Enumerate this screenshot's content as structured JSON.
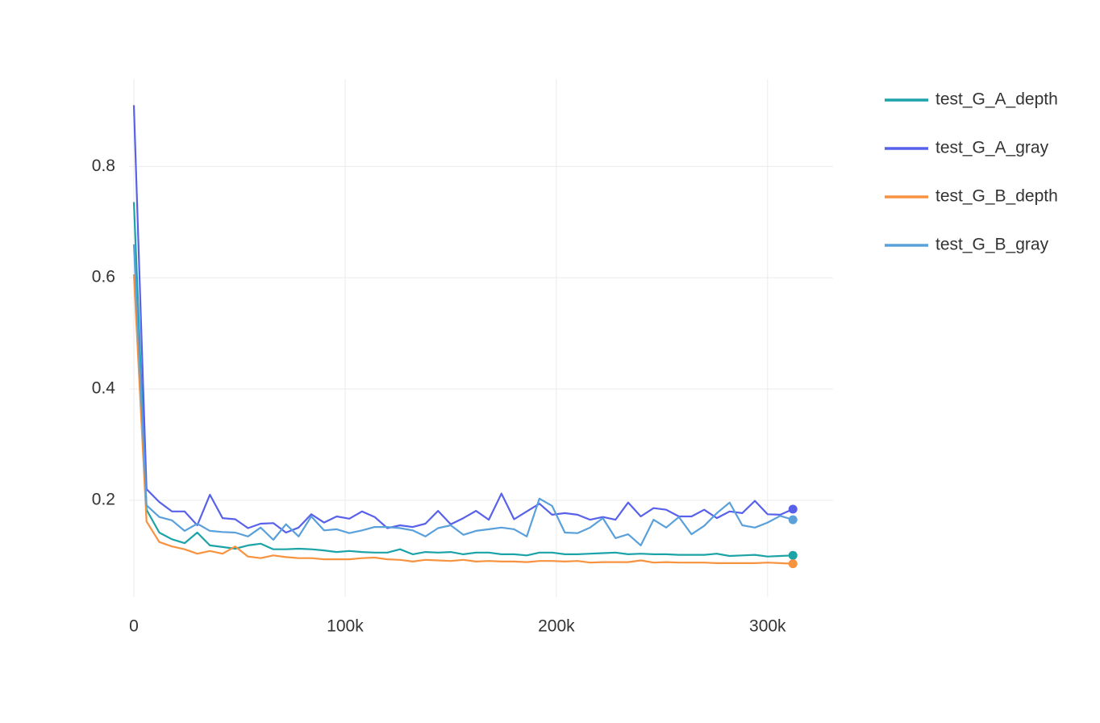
{
  "chart_data": {
    "type": "line",
    "x": [
      0,
      6000,
      12000,
      18000,
      24000,
      30000,
      36000,
      42000,
      48000,
      54000,
      60000,
      66000,
      72000,
      78000,
      84000,
      90000,
      96000,
      102000,
      108000,
      114000,
      120000,
      126000,
      132000,
      138000,
      144000,
      150000,
      156000,
      162000,
      168000,
      174000,
      180000,
      186000,
      192000,
      198000,
      204000,
      210000,
      216000,
      222000,
      228000,
      234000,
      240000,
      246000,
      252000,
      258000,
      264000,
      270000,
      276000,
      282000,
      288000,
      294000,
      300000,
      306000,
      312000
    ],
    "series": [
      {
        "name": "test_G_A_depth",
        "color": "#1ba3a8",
        "values": [
          0.736,
          0.183,
          0.142,
          0.13,
          0.123,
          0.142,
          0.119,
          0.116,
          0.113,
          0.119,
          0.122,
          0.112,
          0.112,
          0.113,
          0.112,
          0.11,
          0.107,
          0.109,
          0.107,
          0.106,
          0.106,
          0.112,
          0.103,
          0.107,
          0.106,
          0.107,
          0.103,
          0.106,
          0.106,
          0.103,
          0.103,
          0.101,
          0.106,
          0.106,
          0.103,
          0.103,
          0.104,
          0.105,
          0.106,
          0.103,
          0.104,
          0.103,
          0.103,
          0.102,
          0.102,
          0.102,
          0.104,
          0.1,
          0.101,
          0.102,
          0.099,
          0.1,
          0.101
        ]
      },
      {
        "name": "test_G_A_gray",
        "color": "#5761ea",
        "values": [
          0.91,
          0.22,
          0.197,
          0.18,
          0.18,
          0.155,
          0.21,
          0.168,
          0.166,
          0.15,
          0.158,
          0.159,
          0.142,
          0.151,
          0.175,
          0.16,
          0.171,
          0.167,
          0.18,
          0.17,
          0.15,
          0.155,
          0.152,
          0.158,
          0.181,
          0.157,
          0.168,
          0.181,
          0.165,
          0.212,
          0.166,
          0.18,
          0.194,
          0.174,
          0.177,
          0.174,
          0.165,
          0.17,
          0.165,
          0.196,
          0.171,
          0.186,
          0.183,
          0.171,
          0.171,
          0.183,
          0.168,
          0.18,
          0.177,
          0.199,
          0.175,
          0.174,
          0.184
        ]
      },
      {
        "name": "test_G_B_depth",
        "color": "#f7923f",
        "values": [
          0.606,
          0.162,
          0.125,
          0.117,
          0.112,
          0.104,
          0.109,
          0.104,
          0.117,
          0.099,
          0.096,
          0.101,
          0.098,
          0.096,
          0.096,
          0.094,
          0.094,
          0.094,
          0.096,
          0.097,
          0.094,
          0.093,
          0.09,
          0.093,
          0.092,
          0.091,
          0.093,
          0.09,
          0.091,
          0.09,
          0.09,
          0.089,
          0.091,
          0.091,
          0.09,
          0.091,
          0.088,
          0.089,
          0.089,
          0.089,
          0.092,
          0.088,
          0.089,
          0.088,
          0.088,
          0.088,
          0.087,
          0.087,
          0.087,
          0.087,
          0.088,
          0.087,
          0.086
        ]
      },
      {
        "name": "test_G_B_gray",
        "color": "#5aa0da",
        "values": [
          0.66,
          0.191,
          0.17,
          0.164,
          0.145,
          0.158,
          0.145,
          0.143,
          0.142,
          0.135,
          0.151,
          0.129,
          0.157,
          0.135,
          0.171,
          0.146,
          0.148,
          0.141,
          0.146,
          0.152,
          0.152,
          0.15,
          0.146,
          0.135,
          0.15,
          0.155,
          0.138,
          0.145,
          0.148,
          0.151,
          0.148,
          0.135,
          0.203,
          0.19,
          0.142,
          0.141,
          0.151,
          0.168,
          0.132,
          0.139,
          0.119,
          0.165,
          0.151,
          0.17,
          0.139,
          0.154,
          0.177,
          0.196,
          0.155,
          0.151,
          0.16,
          0.172,
          0.165
        ]
      }
    ],
    "xlim": [
      -2300,
      331000
    ],
    "ylim": [
      0.026,
      0.957
    ],
    "xticks": [
      0,
      {
        "value": 100000,
        "label": "100k"
      },
      {
        "value": 200000,
        "label": "200k"
      },
      {
        "value": 300000,
        "label": "300k"
      }
    ],
    "yticks": [
      0.2,
      0.4,
      0.6,
      0.8
    ],
    "grid": true
  }
}
